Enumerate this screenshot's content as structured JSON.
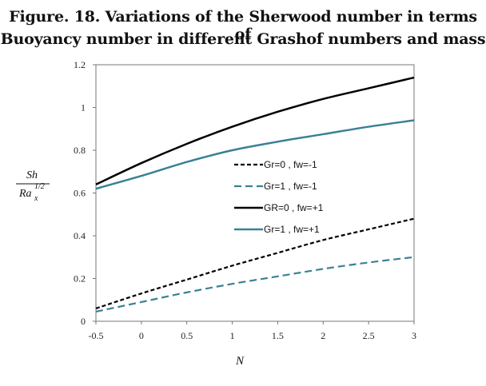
{
  "chart_data": {
    "type": "line",
    "title_line1": "Figure. 18. Variations of the Sherwood number in terms of",
    "title_line2": "Buoyancy number in different Grashof numbers and mass",
    "xlabel": "N",
    "ylabel_num": "Sh",
    "ylabel_den": "Ra",
    "ylabel_sub": "x",
    "ylabel_sup": "1/2",
    "xlim": [
      -0.5,
      3
    ],
    "ylim": [
      0,
      1.2
    ],
    "xticks": [
      "-0.5",
      "0",
      "0.5",
      "1",
      "1.5",
      "2",
      "2.5",
      "3"
    ],
    "yticks": [
      "0",
      "0.2",
      "0.4",
      "0.6",
      "0.8",
      "1",
      "1.2"
    ],
    "x": [
      -0.5,
      0,
      0.5,
      1,
      1.5,
      2,
      2.5,
      3
    ],
    "series": [
      {
        "name": "Gr=0 , fw=-1",
        "color": "#000000",
        "dash": "dashed",
        "values": [
          0.06,
          0.13,
          0.195,
          0.26,
          0.32,
          0.38,
          0.43,
          0.48
        ]
      },
      {
        "name": "Gr=1 , fw=-1",
        "color": "#3a8194",
        "dash": "dashed",
        "values": [
          0.045,
          0.09,
          0.135,
          0.175,
          0.21,
          0.245,
          0.275,
          0.3
        ]
      },
      {
        "name": "GR=0 , fw=+1",
        "color": "#000000",
        "dash": "solid",
        "values": [
          0.64,
          0.74,
          0.83,
          0.91,
          0.98,
          1.04,
          1.09,
          1.14
        ]
      },
      {
        "name": "Gr=1 , fw=+1",
        "color": "#3a8194",
        "dash": "solid",
        "values": [
          0.62,
          0.68,
          0.745,
          0.8,
          0.84,
          0.875,
          0.91,
          0.94
        ]
      }
    ],
    "legend": "inside-right",
    "grid": false
  }
}
